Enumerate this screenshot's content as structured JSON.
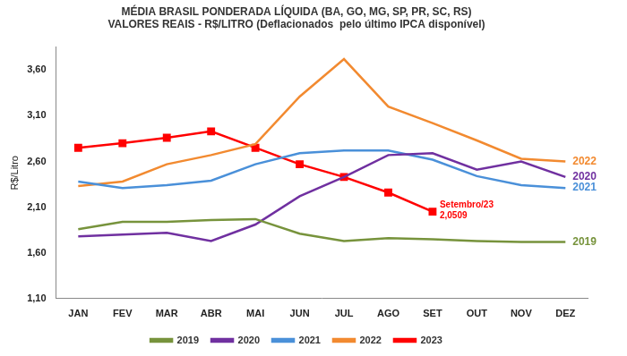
{
  "chart_data": {
    "type": "line",
    "title": [
      "MÉDIA BRASIL PONDERADA LÍQUIDA (BA, GO, MG, SP, PR, SC, RS)",
      "VALORES REAIS - R$/LITRO (Deflacionados  pelo último IPCA disponível)"
    ],
    "y_label": "R$/Litro",
    "categories": [
      "JAN",
      "FEV",
      "MAR",
      "ABR",
      "MAI",
      "JUN",
      "JUL",
      "AGO",
      "SET",
      "OUT",
      "NOV",
      "DEZ"
    ],
    "series": [
      {
        "name": "2019",
        "color": "#77933c",
        "values": [
          1.86,
          1.94,
          1.94,
          1.96,
          1.97,
          1.81,
          1.73,
          1.76,
          1.75,
          1.73,
          1.72,
          1.72
        ]
      },
      {
        "name": "2020",
        "color": "#7030a0",
        "values": [
          1.78,
          1.8,
          1.82,
          1.73,
          1.91,
          2.22,
          2.43,
          2.67,
          2.69,
          2.51,
          2.6,
          2.43
        ]
      },
      {
        "name": "2021",
        "color": "#4a90d9",
        "values": [
          2.38,
          2.31,
          2.34,
          2.39,
          2.57,
          2.69,
          2.72,
          2.72,
          2.62,
          2.44,
          2.34,
          2.31
        ]
      },
      {
        "name": "2022",
        "color": "#f28a30",
        "values": [
          2.33,
          2.38,
          2.57,
          2.67,
          2.79,
          3.31,
          3.72,
          3.2,
          3.02,
          2.83,
          2.63,
          2.6
        ]
      },
      {
        "name": "2023",
        "color": "#ff0000",
        "marker": "square",
        "values": [
          2.75,
          2.8,
          2.86,
          2.93,
          2.75,
          2.57,
          2.43,
          2.26,
          2.0509,
          null,
          null,
          null
        ]
      }
    ],
    "annotations": [
      {
        "text": "2022",
        "series": "2022"
      },
      {
        "text": "2020",
        "series": "2020"
      },
      {
        "text": "2021",
        "series": "2021"
      },
      {
        "text": "2019",
        "series": "2019"
      },
      {
        "text": "Setembro/23",
        "series": "2023"
      },
      {
        "text": "2,0509",
        "series": "2023"
      }
    ],
    "ylim": [
      1.1,
      3.85
    ],
    "yticks": [
      {
        "value": 1.1,
        "label": "1,10"
      },
      {
        "value": 1.6,
        "label": "1,60"
      },
      {
        "value": 2.1,
        "label": "2,10"
      },
      {
        "value": 2.6,
        "label": "2,60"
      },
      {
        "value": 3.1,
        "label": "3,10"
      },
      {
        "value": 3.6,
        "label": "3,60"
      }
    ],
    "grid": false,
    "legend": "bottom"
  }
}
